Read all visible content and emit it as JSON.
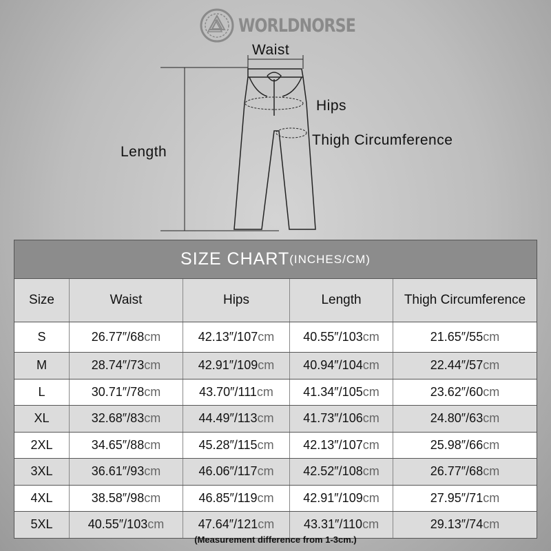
{
  "brand": {
    "name": "WORLDNORSE",
    "logo_icon": "valknut-knot-icon"
  },
  "diagram": {
    "labels": {
      "waist": "Waist",
      "hips": "Hips",
      "thigh": "Thigh Circumference",
      "length": "Length"
    }
  },
  "table": {
    "title": "SIZE CHART",
    "title_unit": "(INCHES/CM)",
    "headers": [
      "Size",
      "Waist",
      "Hips",
      "Length",
      "Thigh Circumference"
    ],
    "unit": "cm",
    "rows": [
      {
        "size": "S",
        "values": [
          "26.77″/68",
          "42.13″/107",
          "40.55″/103",
          "21.65″/55"
        ]
      },
      {
        "size": "M",
        "values": [
          "28.74″/73",
          "42.91″/109",
          "40.94″/104",
          "22.44″/57"
        ]
      },
      {
        "size": "L",
        "values": [
          "30.71″/78",
          "43.70″/111",
          "41.34″/105",
          "23.62″/60"
        ]
      },
      {
        "size": "XL",
        "values": [
          "32.68″/83",
          "44.49″/113",
          "41.73″/106",
          "24.80″/63"
        ]
      },
      {
        "size": "2XL",
        "values": [
          "34.65″/88",
          "45.28″/115",
          "42.13″/107",
          "25.98″/66"
        ]
      },
      {
        "size": "3XL",
        "values": [
          "36.61″/93",
          "46.06″/117",
          "42.52″/108",
          "26.77″/68"
        ]
      },
      {
        "size": "4XL",
        "values": [
          "38.58″/98",
          "46.85″/119",
          "42.91″/109",
          "27.95″/71"
        ]
      },
      {
        "size": "5XL",
        "values": [
          "40.55″/103",
          "47.64″/121",
          "43.31″/110",
          "29.13″/74"
        ]
      }
    ]
  },
  "note": "(Measurement difference from 1-3cm.)",
  "colors": {
    "title_bar": "#8c8c8c",
    "alt_row": "#dcdcdc",
    "unit_text": "#666666",
    "brand_text": "#8a8a8a"
  }
}
